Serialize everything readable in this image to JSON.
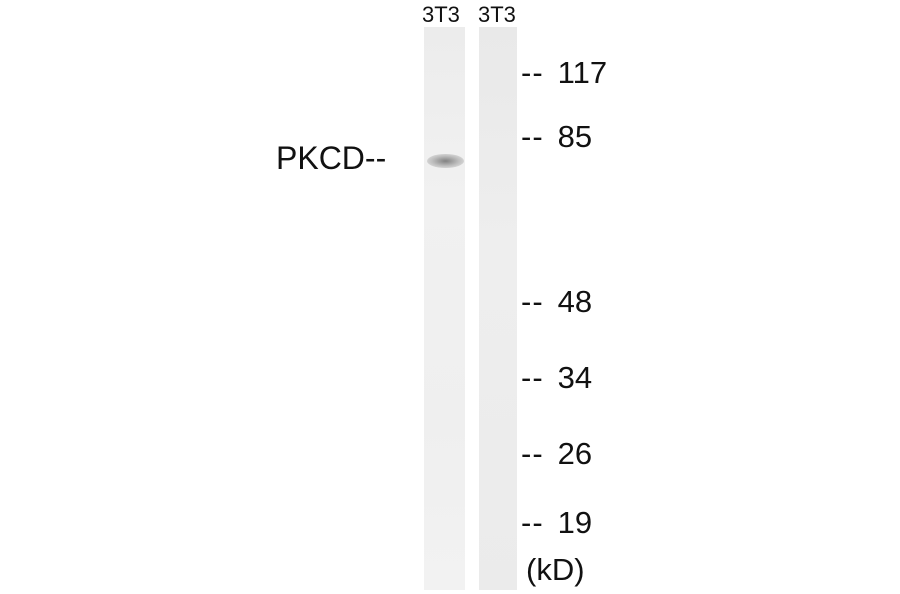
{
  "lanes": [
    {
      "label": "3T3"
    },
    {
      "label": "3T3"
    }
  ],
  "target": {
    "label": "PKCD--"
  },
  "markers": [
    {
      "dash": "--",
      "value": "117"
    },
    {
      "dash": "--",
      "value": "85"
    },
    {
      "dash": "--",
      "value": "48"
    },
    {
      "dash": "--",
      "value": "34"
    },
    {
      "dash": "--",
      "value": "26"
    },
    {
      "dash": "--",
      "value": "19"
    }
  ],
  "unit": "(kD)"
}
